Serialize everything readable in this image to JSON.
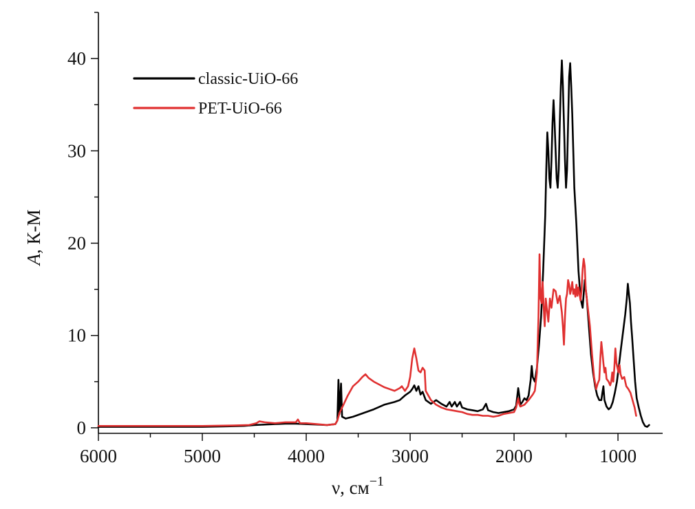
{
  "chart_data": {
    "type": "line",
    "title": "",
    "xlabel": "ν, см",
    "xlabel_sup": "−1",
    "ylabel_italic": "A",
    "ylabel_rest": ", К-М",
    "xlim": [
      6000,
      570
    ],
    "ylim": [
      -0.6,
      45
    ],
    "x_ticks": [
      6000,
      5000,
      4000,
      3000,
      2000,
      1000
    ],
    "x_tick_labels": [
      "6000",
      "5000",
      "4000",
      "3000",
      "2000",
      "1000"
    ],
    "y_ticks": [
      0,
      10,
      20,
      30,
      40
    ],
    "y_tick_labels": [
      "0",
      "10",
      "20",
      "30",
      "40"
    ],
    "legend_position": "top-left",
    "series": [
      {
        "name": "classic-UiO-66",
        "color": "#000000",
        "points": [
          [
            6000,
            0.1
          ],
          [
            5500,
            0.1
          ],
          [
            5000,
            0.1
          ],
          [
            4800,
            0.15
          ],
          [
            4600,
            0.2
          ],
          [
            4500,
            0.3
          ],
          [
            4400,
            0.35
          ],
          [
            4300,
            0.4
          ],
          [
            4200,
            0.45
          ],
          [
            4100,
            0.45
          ],
          [
            4000,
            0.4
          ],
          [
            3900,
            0.35
          ],
          [
            3800,
            0.3
          ],
          [
            3720,
            0.4
          ],
          [
            3700,
            0.8
          ],
          [
            3690,
            5.2
          ],
          [
            3680,
            1.5
          ],
          [
            3665,
            4.8
          ],
          [
            3655,
            1.2
          ],
          [
            3620,
            1.0
          ],
          [
            3550,
            1.2
          ],
          [
            3450,
            1.6
          ],
          [
            3350,
            2.0
          ],
          [
            3250,
            2.5
          ],
          [
            3150,
            2.8
          ],
          [
            3100,
            3.0
          ],
          [
            3050,
            3.5
          ],
          [
            3000,
            3.9
          ],
          [
            2980,
            4.2
          ],
          [
            2960,
            4.6
          ],
          [
            2940,
            4.0
          ],
          [
            2920,
            4.5
          ],
          [
            2900,
            3.6
          ],
          [
            2880,
            3.9
          ],
          [
            2850,
            3.0
          ],
          [
            2800,
            2.6
          ],
          [
            2750,
            3.0
          ],
          [
            2700,
            2.6
          ],
          [
            2650,
            2.3
          ],
          [
            2620,
            2.8
          ],
          [
            2600,
            2.3
          ],
          [
            2570,
            2.8
          ],
          [
            2550,
            2.3
          ],
          [
            2520,
            2.8
          ],
          [
            2500,
            2.2
          ],
          [
            2450,
            2.0
          ],
          [
            2400,
            1.9
          ],
          [
            2350,
            1.8
          ],
          [
            2300,
            2.0
          ],
          [
            2270,
            2.6
          ],
          [
            2250,
            1.9
          ],
          [
            2200,
            1.7
          ],
          [
            2150,
            1.6
          ],
          [
            2100,
            1.7
          ],
          [
            2050,
            1.8
          ],
          [
            2000,
            2.0
          ],
          [
            1980,
            2.4
          ],
          [
            1960,
            4.3
          ],
          [
            1950,
            3.5
          ],
          [
            1940,
            2.5
          ],
          [
            1920,
            2.8
          ],
          [
            1900,
            3.2
          ],
          [
            1880,
            3.0
          ],
          [
            1860,
            3.5
          ],
          [
            1840,
            5.2
          ],
          [
            1830,
            6.7
          ],
          [
            1820,
            5.5
          ],
          [
            1800,
            5.0
          ],
          [
            1780,
            6.5
          ],
          [
            1760,
            9.0
          ],
          [
            1740,
            12.0
          ],
          [
            1720,
            17.0
          ],
          [
            1700,
            23.0
          ],
          [
            1690,
            28.0
          ],
          [
            1680,
            32.0
          ],
          [
            1670,
            30.0
          ],
          [
            1660,
            27.0
          ],
          [
            1650,
            26.0
          ],
          [
            1640,
            29.0
          ],
          [
            1630,
            33.0
          ],
          [
            1620,
            35.5
          ],
          [
            1610,
            33.0
          ],
          [
            1600,
            30.0
          ],
          [
            1590,
            27.0
          ],
          [
            1580,
            26.0
          ],
          [
            1570,
            28.0
          ],
          [
            1560,
            33.0
          ],
          [
            1550,
            37.0
          ],
          [
            1540,
            39.8
          ],
          [
            1530,
            37.0
          ],
          [
            1520,
            33.0
          ],
          [
            1510,
            29.0
          ],
          [
            1500,
            26.0
          ],
          [
            1490,
            28.0
          ],
          [
            1480,
            33.0
          ],
          [
            1470,
            38.0
          ],
          [
            1460,
            39.5
          ],
          [
            1450,
            37.0
          ],
          [
            1440,
            34.0
          ],
          [
            1430,
            30.0
          ],
          [
            1420,
            26.0
          ],
          [
            1400,
            22.0
          ],
          [
            1380,
            17.0
          ],
          [
            1360,
            14.0
          ],
          [
            1340,
            13.0
          ],
          [
            1320,
            16.0
          ],
          [
            1300,
            14.0
          ],
          [
            1280,
            11.0
          ],
          [
            1260,
            8.0
          ],
          [
            1240,
            6.0
          ],
          [
            1220,
            4.5
          ],
          [
            1200,
            3.5
          ],
          [
            1180,
            3.0
          ],
          [
            1160,
            3.0
          ],
          [
            1150,
            3.8
          ],
          [
            1140,
            4.5
          ],
          [
            1130,
            3.0
          ],
          [
            1110,
            2.3
          ],
          [
            1090,
            2.0
          ],
          [
            1070,
            2.2
          ],
          [
            1050,
            2.8
          ],
          [
            1030,
            3.8
          ],
          [
            1010,
            5.0
          ],
          [
            990,
            6.8
          ],
          [
            970,
            8.7
          ],
          [
            950,
            10.5
          ],
          [
            930,
            12.3
          ],
          [
            915,
            14.0
          ],
          [
            905,
            15.6
          ],
          [
            895,
            14.5
          ],
          [
            885,
            13.5
          ],
          [
            875,
            11.5
          ],
          [
            865,
            10.0
          ],
          [
            850,
            7.5
          ],
          [
            835,
            5.0
          ],
          [
            820,
            3.2
          ],
          [
            800,
            2.2
          ],
          [
            780,
            1.3
          ],
          [
            760,
            0.6
          ],
          [
            740,
            0.2
          ],
          [
            720,
            0.1
          ],
          [
            700,
            0.3
          ]
        ]
      },
      {
        "name": "PET-UiO-66",
        "color": "#e03030",
        "points": [
          [
            6000,
            0.2
          ],
          [
            5500,
            0.2
          ],
          [
            5000,
            0.2
          ],
          [
            4700,
            0.25
          ],
          [
            4550,
            0.3
          ],
          [
            4480,
            0.5
          ],
          [
            4450,
            0.7
          ],
          [
            4400,
            0.6
          ],
          [
            4300,
            0.5
          ],
          [
            4200,
            0.6
          ],
          [
            4100,
            0.6
          ],
          [
            4080,
            0.9
          ],
          [
            4060,
            0.5
          ],
          [
            4000,
            0.5
          ],
          [
            3900,
            0.4
          ],
          [
            3800,
            0.3
          ],
          [
            3720,
            0.4
          ],
          [
            3700,
            0.8
          ],
          [
            3680,
            1.6
          ],
          [
            3650,
            2.3
          ],
          [
            3600,
            3.5
          ],
          [
            3550,
            4.5
          ],
          [
            3500,
            5.0
          ],
          [
            3460,
            5.5
          ],
          [
            3430,
            5.8
          ],
          [
            3400,
            5.4
          ],
          [
            3350,
            5.0
          ],
          [
            3300,
            4.7
          ],
          [
            3250,
            4.4
          ],
          [
            3200,
            4.2
          ],
          [
            3150,
            4.0
          ],
          [
            3100,
            4.3
          ],
          [
            3080,
            4.5
          ],
          [
            3050,
            4.0
          ],
          [
            3020,
            4.5
          ],
          [
            3000,
            5.5
          ],
          [
            2980,
            7.5
          ],
          [
            2960,
            8.6
          ],
          [
            2940,
            7.5
          ],
          [
            2920,
            6.2
          ],
          [
            2900,
            6.0
          ],
          [
            2880,
            6.5
          ],
          [
            2860,
            6.2
          ],
          [
            2850,
            4.0
          ],
          [
            2800,
            3.0
          ],
          [
            2750,
            2.5
          ],
          [
            2700,
            2.2
          ],
          [
            2650,
            2.0
          ],
          [
            2600,
            1.9
          ],
          [
            2550,
            1.8
          ],
          [
            2500,
            1.7
          ],
          [
            2450,
            1.5
          ],
          [
            2400,
            1.4
          ],
          [
            2350,
            1.4
          ],
          [
            2300,
            1.3
          ],
          [
            2250,
            1.3
          ],
          [
            2200,
            1.2
          ],
          [
            2150,
            1.3
          ],
          [
            2100,
            1.5
          ],
          [
            2050,
            1.6
          ],
          [
            2000,
            1.7
          ],
          [
            1980,
            2.2
          ],
          [
            1960,
            3.2
          ],
          [
            1950,
            2.6
          ],
          [
            1940,
            2.3
          ],
          [
            1900,
            2.5
          ],
          [
            1860,
            3.0
          ],
          [
            1820,
            3.6
          ],
          [
            1800,
            4.0
          ],
          [
            1780,
            6.0
          ],
          [
            1765,
            12.0
          ],
          [
            1755,
            18.8
          ],
          [
            1745,
            14.0
          ],
          [
            1735,
            13.5
          ],
          [
            1725,
            15.8
          ],
          [
            1715,
            13.0
          ],
          [
            1705,
            11.0
          ],
          [
            1695,
            14.0
          ],
          [
            1685,
            13.0
          ],
          [
            1670,
            11.5
          ],
          [
            1655,
            14.0
          ],
          [
            1640,
            13.0
          ],
          [
            1620,
            15.0
          ],
          [
            1600,
            14.8
          ],
          [
            1580,
            13.5
          ],
          [
            1560,
            14.3
          ],
          [
            1540,
            12.5
          ],
          [
            1530,
            11.0
          ],
          [
            1520,
            9.0
          ],
          [
            1510,
            12.0
          ],
          [
            1500,
            14.0
          ],
          [
            1490,
            14.5
          ],
          [
            1480,
            16.0
          ],
          [
            1470,
            15.5
          ],
          [
            1460,
            14.5
          ],
          [
            1450,
            15.0
          ],
          [
            1440,
            15.8
          ],
          [
            1430,
            14.5
          ],
          [
            1420,
            15.0
          ],
          [
            1410,
            14.2
          ],
          [
            1400,
            15.5
          ],
          [
            1390,
            14.3
          ],
          [
            1380,
            15.2
          ],
          [
            1360,
            13.8
          ],
          [
            1350,
            15.0
          ],
          [
            1340,
            17.2
          ],
          [
            1330,
            18.3
          ],
          [
            1320,
            17.5
          ],
          [
            1310,
            15.0
          ],
          [
            1290,
            13.0
          ],
          [
            1270,
            11.0
          ],
          [
            1250,
            8.0
          ],
          [
            1230,
            5.5
          ],
          [
            1210,
            4.2
          ],
          [
            1195,
            4.8
          ],
          [
            1180,
            5.2
          ],
          [
            1170,
            7.5
          ],
          [
            1160,
            9.3
          ],
          [
            1150,
            8.2
          ],
          [
            1140,
            7.0
          ],
          [
            1130,
            6.0
          ],
          [
            1120,
            6.5
          ],
          [
            1110,
            5.3
          ],
          [
            1090,
            5.0
          ],
          [
            1075,
            4.6
          ],
          [
            1065,
            5.0
          ],
          [
            1055,
            6.0
          ],
          [
            1045,
            5.0
          ],
          [
            1035,
            6.5
          ],
          [
            1025,
            8.6
          ],
          [
            1015,
            7.0
          ],
          [
            1005,
            6.5
          ],
          [
            995,
            6.0
          ],
          [
            985,
            6.8
          ],
          [
            975,
            5.8
          ],
          [
            960,
            5.3
          ],
          [
            940,
            5.5
          ],
          [
            920,
            4.5
          ],
          [
            900,
            4.2
          ],
          [
            880,
            3.8
          ],
          [
            860,
            3.0
          ],
          [
            840,
            2.2
          ],
          [
            825,
            1.3
          ]
        ]
      }
    ]
  }
}
